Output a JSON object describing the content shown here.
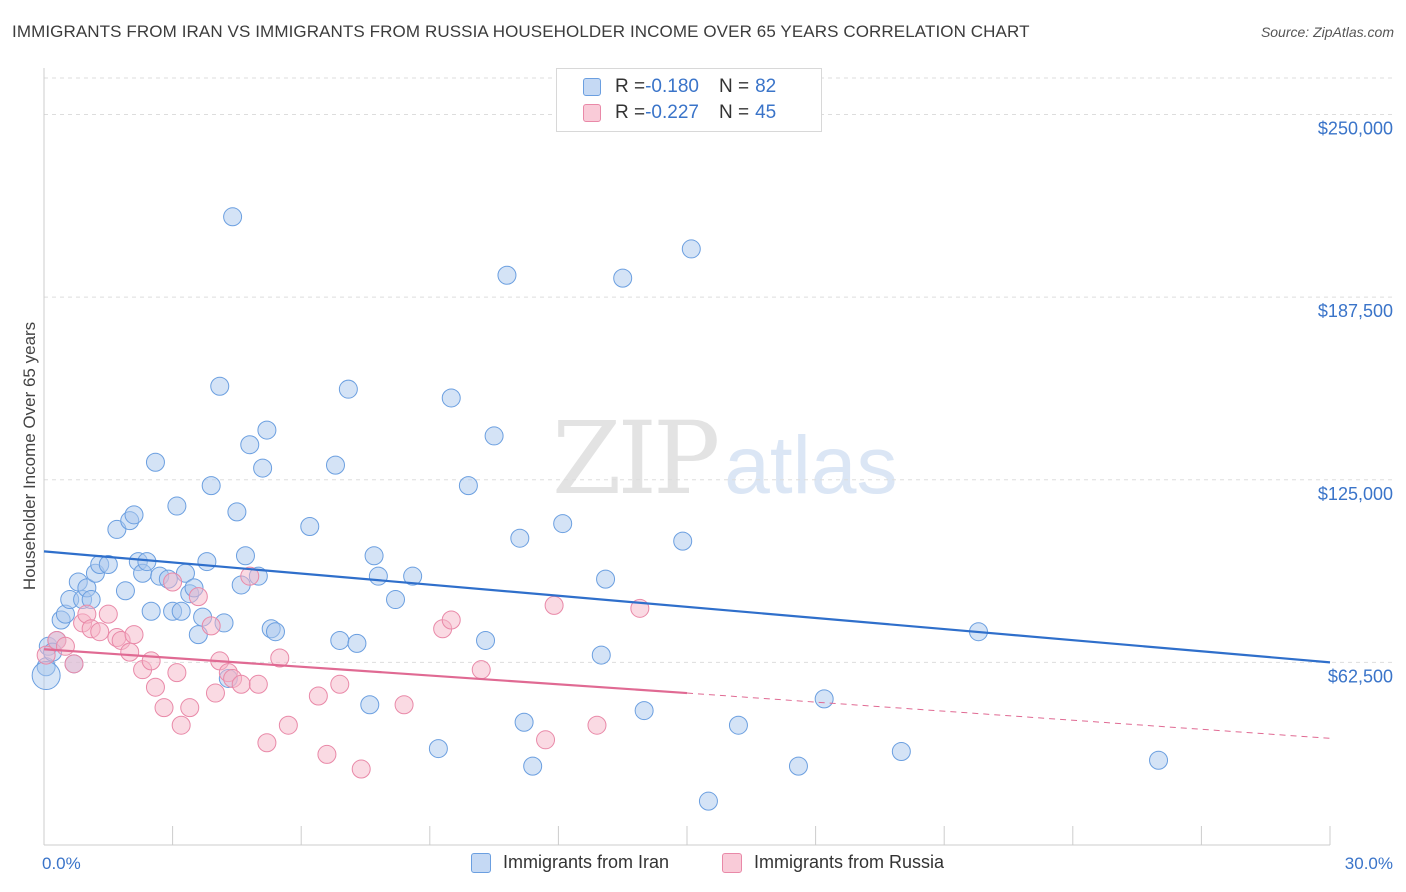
{
  "header": {
    "title": "IMMIGRANTS FROM IRAN VS IMMIGRANTS FROM RUSSIA HOUSEHOLDER INCOME OVER 65 YEARS CORRELATION CHART",
    "source": "Source: ZipAtlas.com"
  },
  "watermark": {
    "zip": "ZIP",
    "atlas": "atlas"
  },
  "legend": {
    "iran": {
      "r_label": "R = ",
      "r_value": "-0.180",
      "n_label": "N = ",
      "n_value": "82"
    },
    "russia": {
      "r_label": "R = ",
      "r_value": "-0.227",
      "n_label": "N = ",
      "n_value": "45"
    }
  },
  "colors": {
    "iran_fill": "#a9c8ee",
    "iran_stroke": "#6b9fe0",
    "iran_line": "#2f6fcb",
    "russia_fill": "#f5b6c8",
    "russia_stroke": "#e989a8",
    "russia_line": "#e06a93",
    "grid": "#dddddd",
    "axis_text": "#3a74c9"
  },
  "chart_data": {
    "type": "scatter",
    "title": "IMMIGRANTS FROM IRAN VS IMMIGRANTS FROM RUSSIA HOUSEHOLDER INCOME OVER 65 YEARS CORRELATION CHART",
    "xlabel": "",
    "ylabel": "Householder Income Over 65 years",
    "xlim": [
      0,
      30
    ],
    "ylim": [
      0,
      262500
    ],
    "x_tick_labels": [
      "0.0%",
      "30.0%"
    ],
    "y_ticks": [
      62500,
      125000,
      187500,
      250000
    ],
    "y_tick_labels": [
      "$62,500",
      "$125,000",
      "$187,500",
      "$250,000"
    ],
    "grid": "horizontal dashed",
    "legend_position": "top-center",
    "series": [
      {
        "name": "Immigrants from Iran",
        "color": "#a9c8ee",
        "r": -0.18,
        "n": 82,
        "trend": {
          "x": [
            0,
            30
          ],
          "y": [
            100500,
            62500
          ],
          "dashed_from": null
        },
        "points": [
          [
            0.1,
            68000
          ],
          [
            0.3,
            70000
          ],
          [
            0.4,
            77000
          ],
          [
            0.5,
            79000
          ],
          [
            0.6,
            84000
          ],
          [
            0.7,
            62000
          ],
          [
            0.8,
            90000
          ],
          [
            0.9,
            84000
          ],
          [
            1.0,
            88000
          ],
          [
            1.1,
            84000
          ],
          [
            1.2,
            93000
          ],
          [
            1.3,
            96000
          ],
          [
            1.5,
            96000
          ],
          [
            1.7,
            108000
          ],
          [
            1.9,
            87000
          ],
          [
            2.0,
            111000
          ],
          [
            2.1,
            113000
          ],
          [
            2.2,
            97000
          ],
          [
            2.3,
            93000
          ],
          [
            2.4,
            97000
          ],
          [
            2.5,
            80000
          ],
          [
            2.6,
            131000
          ],
          [
            2.7,
            92000
          ],
          [
            2.9,
            91000
          ],
          [
            3.0,
            80000
          ],
          [
            3.1,
            116000
          ],
          [
            3.2,
            80000
          ],
          [
            3.3,
            93000
          ],
          [
            3.4,
            86000
          ],
          [
            3.5,
            88000
          ],
          [
            3.6,
            72000
          ],
          [
            3.7,
            78000
          ],
          [
            3.8,
            97000
          ],
          [
            3.9,
            123000
          ],
          [
            4.1,
            157000
          ],
          [
            4.2,
            76000
          ],
          [
            4.3,
            57000
          ],
          [
            4.4,
            215000
          ],
          [
            4.5,
            114000
          ],
          [
            4.6,
            89000
          ],
          [
            4.7,
            99000
          ],
          [
            4.8,
            137000
          ],
          [
            5.0,
            92000
          ],
          [
            5.1,
            129000
          ],
          [
            5.2,
            142000
          ],
          [
            5.3,
            74000
          ],
          [
            5.4,
            73000
          ],
          [
            6.2,
            109000
          ],
          [
            6.8,
            130000
          ],
          [
            6.9,
            70000
          ],
          [
            7.1,
            156000
          ],
          [
            7.3,
            69000
          ],
          [
            7.6,
            48000
          ],
          [
            7.7,
            99000
          ],
          [
            7.8,
            92000
          ],
          [
            8.2,
            84000
          ],
          [
            8.6,
            92000
          ],
          [
            9.2,
            33000
          ],
          [
            9.5,
            153000
          ],
          [
            9.9,
            123000
          ],
          [
            10.3,
            70000
          ],
          [
            10.5,
            140000
          ],
          [
            10.8,
            195000
          ],
          [
            11.1,
            105000
          ],
          [
            11.2,
            42000
          ],
          [
            11.4,
            27000
          ],
          [
            12.1,
            110000
          ],
          [
            13.0,
            65000
          ],
          [
            13.1,
            91000
          ],
          [
            13.5,
            194000
          ],
          [
            14.0,
            46000
          ],
          [
            14.9,
            104000
          ],
          [
            15.1,
            204000
          ],
          [
            15.5,
            15000
          ],
          [
            16.2,
            41000
          ],
          [
            17.6,
            27000
          ],
          [
            18.2,
            50000
          ],
          [
            20.0,
            32000
          ],
          [
            21.8,
            73000
          ],
          [
            26.0,
            29000
          ],
          [
            0.05,
            61000
          ],
          [
            0.2,
            66000
          ]
        ]
      },
      {
        "name": "Immigrants from Russia",
        "color": "#f5b6c8",
        "r": -0.227,
        "n": 45,
        "trend": {
          "x": [
            0,
            15,
            30
          ],
          "y": [
            67000,
            52000,
            36500
          ],
          "dashed_from": 15
        },
        "points": [
          [
            0.05,
            65000
          ],
          [
            0.3,
            70000
          ],
          [
            0.5,
            68000
          ],
          [
            0.7,
            62000
          ],
          [
            0.9,
            76000
          ],
          [
            1.0,
            79000
          ],
          [
            1.1,
            74000
          ],
          [
            1.3,
            73000
          ],
          [
            1.5,
            79000
          ],
          [
            1.7,
            71000
          ],
          [
            1.8,
            70000
          ],
          [
            2.0,
            66000
          ],
          [
            2.1,
            72000
          ],
          [
            2.3,
            60000
          ],
          [
            2.5,
            63000
          ],
          [
            2.6,
            54000
          ],
          [
            2.8,
            47000
          ],
          [
            3.0,
            90000
          ],
          [
            3.1,
            59000
          ],
          [
            3.2,
            41000
          ],
          [
            3.4,
            47000
          ],
          [
            3.6,
            85000
          ],
          [
            3.9,
            75000
          ],
          [
            4.0,
            52000
          ],
          [
            4.1,
            63000
          ],
          [
            4.3,
            59000
          ],
          [
            4.4,
            57000
          ],
          [
            4.6,
            55000
          ],
          [
            4.8,
            92000
          ],
          [
            5.0,
            55000
          ],
          [
            5.2,
            35000
          ],
          [
            5.5,
            64000
          ],
          [
            5.7,
            41000
          ],
          [
            6.4,
            51000
          ],
          [
            6.6,
            31000
          ],
          [
            6.9,
            55000
          ],
          [
            7.4,
            26000
          ],
          [
            8.4,
            48000
          ],
          [
            9.3,
            74000
          ],
          [
            9.5,
            77000
          ],
          [
            10.2,
            60000
          ],
          [
            11.7,
            36000
          ],
          [
            11.9,
            82000
          ],
          [
            12.9,
            41000
          ],
          [
            13.9,
            81000
          ]
        ]
      }
    ]
  }
}
